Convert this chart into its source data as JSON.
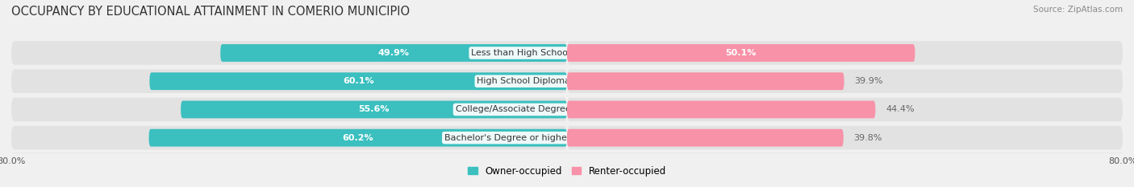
{
  "title": "OCCUPANCY BY EDUCATIONAL ATTAINMENT IN COMERIO MUNICIPIO",
  "source": "Source: ZipAtlas.com",
  "categories": [
    "Less than High School",
    "High School Diploma",
    "College/Associate Degree",
    "Bachelor's Degree or higher"
  ],
  "owner_values": [
    49.9,
    60.1,
    55.6,
    60.2
  ],
  "renter_values": [
    50.1,
    39.9,
    44.4,
    39.8
  ],
  "owner_color": "#3BBFBF",
  "renter_color": "#F892A8",
  "axis_min": 0,
  "axis_max": 80.0,
  "legend_owner": "Owner-occupied",
  "legend_renter": "Renter-occupied",
  "bg_color": "#f0f0f0",
  "bar_bg_color": "#e2e2e2",
  "bar_shadow_color": "#d0d0d0",
  "title_fontsize": 10.5,
  "source_fontsize": 7.5,
  "label_fontsize": 8,
  "cat_fontsize": 8,
  "bar_height": 0.62,
  "renter_label_color": "#666666",
  "white_text_threshold": 45
}
